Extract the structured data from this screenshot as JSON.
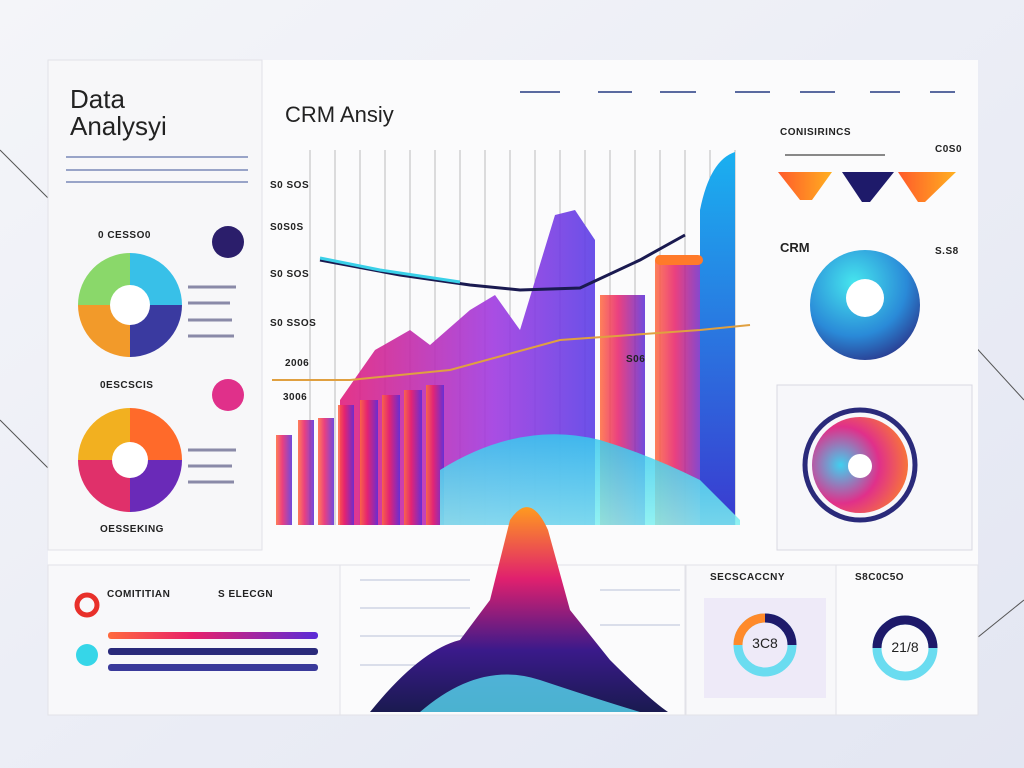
{
  "sidebar": {
    "title_line1": "Data",
    "title_line2": "Analysyi",
    "section1": "0 CESSO0",
    "section2": "0ESCSCIS",
    "footer": "OESSEKING"
  },
  "main": {
    "title": "CRM Ansiy",
    "axis_labels": [
      "S0 SOS",
      "S0S0S",
      "S0 SOS",
      "S0 SSOS"
    ],
    "label_a": "2006",
    "label_b": "3006",
    "label_c": "S06"
  },
  "right": {
    "title": "CONISIRINCS",
    "value": "C0S0",
    "crm": "CRM",
    "crm_value": "S.S8"
  },
  "bottom": {
    "left_title": "COMITITIAN",
    "left_sub": "S ELECGN",
    "panel3_title": "SECSCACCNY",
    "panel4_title": "S8C0C5O",
    "gauge1": "3C8",
    "gauge2": "21/8"
  }
}
